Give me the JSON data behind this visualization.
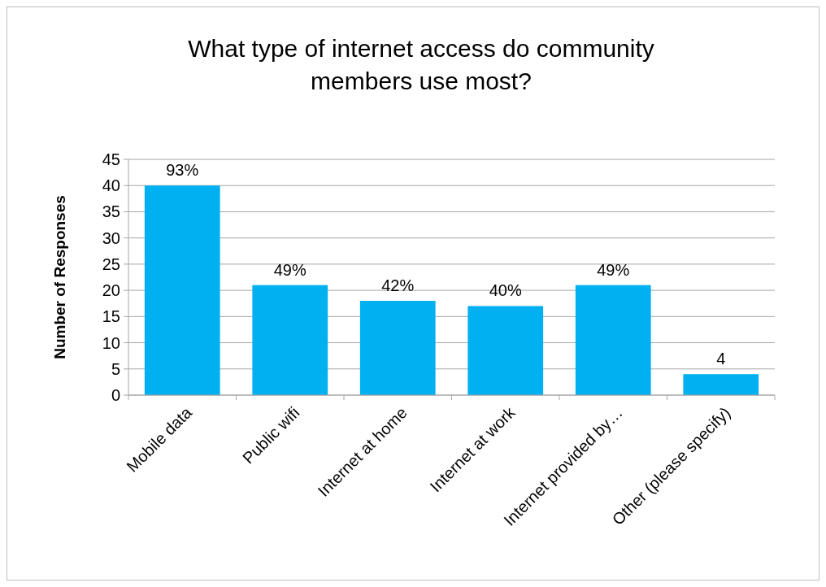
{
  "chart_data": {
    "type": "bar",
    "title": "What type of internet access do community members use most?",
    "ylabel": "Number of Responses",
    "categories": [
      "Mobile data",
      "Public wifi",
      "Internet at home",
      "Internet at work",
      "Internet provided by…",
      "Other (please specify)"
    ],
    "values": [
      40,
      21,
      18,
      17,
      21,
      4
    ],
    "color": "#00b0f0",
    "annotations": [
      {
        "text": "93%",
        "x": "Mobile data",
        "y": 40
      },
      {
        "text": "49%",
        "x": "Public wifi",
        "y": 21
      },
      {
        "text": "42%",
        "x": "Internet at home",
        "y": 18
      },
      {
        "text": "40%",
        "x": "Internet at work",
        "y": 17
      },
      {
        "text": "49%",
        "x": "Internet provided by…",
        "y": 21
      },
      {
        "text": "4",
        "x": "Other (please specify)",
        "y": 4
      }
    ],
    "ylim": [
      0,
      45
    ],
    "yticks": [
      0,
      5,
      10,
      15,
      20,
      25,
      30,
      35,
      40,
      45
    ],
    "grid": "y"
  }
}
